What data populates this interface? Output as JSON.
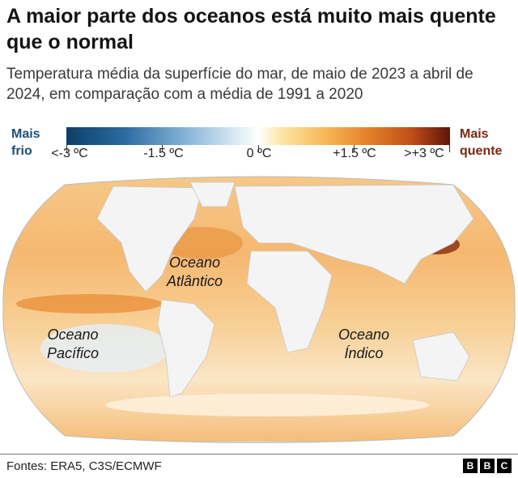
{
  "title": "A maior parte dos oceanos está muito mais quente que o normal",
  "subtitle": "Temperatura média da superfície do mar, de maio de 2023 a abril de 2024, em comparação com a média de 1991 a 2020",
  "legend": {
    "left_label_1": "Mais",
    "left_label_2": "frio",
    "right_label_1": "Mais",
    "right_label_2": "quente",
    "ticks": [
      "<-3 ºC",
      "-1.5 ºC",
      "0 ºC",
      "+1.5 ºC",
      ">+3 ºC"
    ],
    "colors": {
      "cold": "#0b3f68",
      "neutral": "#ffffff",
      "warm": "#f7b553",
      "hot": "#5e1408"
    }
  },
  "map": {
    "labels": {
      "atlantic_1": "Oceano",
      "atlantic_2": "Atlântico",
      "pacific_1": "Oceano",
      "pacific_2": "Pacífico",
      "indian_1": "Oceano",
      "indian_2": "Índico"
    }
  },
  "footer": {
    "source": "Fontes: ERA5, C3S/ECMWF",
    "logo": [
      "B",
      "B",
      "C"
    ]
  }
}
